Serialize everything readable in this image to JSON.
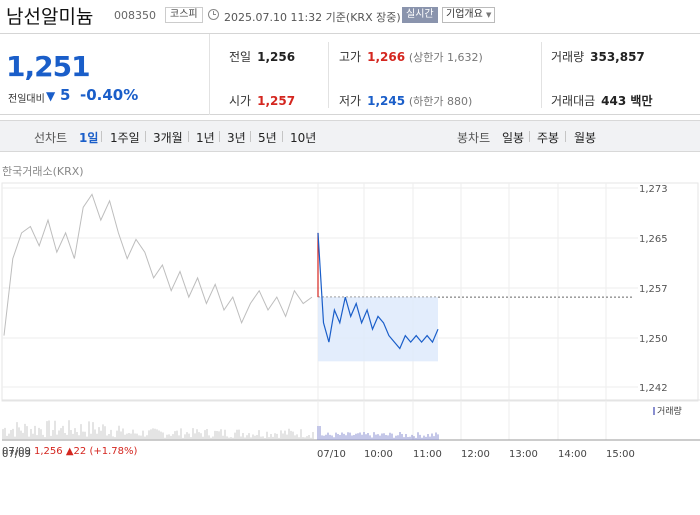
{
  "header": {
    "company_name": "남선알미늄",
    "company_code": "008350",
    "market": "코스피",
    "datetime": "2025.07.10 11:32 기준(KRX 장중)",
    "realtime_label": "실시간",
    "company_info_label": "기업개요"
  },
  "price": {
    "current": "1,251",
    "change_label": "전일대비",
    "change_value": "5",
    "change_rate": "-0.40%"
  },
  "metrics": {
    "prev_close_label": "전일",
    "prev_close": "1,256",
    "open_label": "시가",
    "open": "1,257",
    "high_label": "고가",
    "high": "1,266",
    "upper_limit": "(상한가 1,632)",
    "low_label": "저가",
    "low": "1,245",
    "lower_limit": "(하한가 880)",
    "volume_label": "거래량",
    "volume": "353,857",
    "amount_label": "거래대금",
    "amount": "443 백만"
  },
  "tabs": {
    "line_label": "선차트",
    "line_tabs": [
      "1일",
      "1주일",
      "3개월",
      "1년",
      "3년",
      "5년",
      "10년"
    ],
    "active_tab": "1일",
    "candle_label": "봉차트",
    "candle_tabs": [
      "일봉",
      "주봉",
      "월봉"
    ]
  },
  "chart": {
    "source": "한국거래소(KRX)",
    "volume_legend": "거래량",
    "prev_day_summary": {
      "date": "07/09",
      "close": "1,256",
      "change": "22",
      "rate": "(+1.78%)"
    },
    "colors": {
      "up": "#d4261f",
      "down": "#1a5ec9",
      "prev_line": "#bdbdbd",
      "fill": "#dce8fb"
    }
  },
  "chart_data": {
    "type": "line",
    "y_ticks": [
      "1,273",
      "1,265",
      "1,257",
      "1,250",
      "1,242"
    ],
    "ylim": [
      1242,
      1273
    ],
    "x_ticks": [
      "07/09",
      "07/10",
      "10:00",
      "11:00",
      "12:00",
      "13:00",
      "14:00",
      "15:00"
    ],
    "reference_line": 1256,
    "series": [
      {
        "values": [
          1250,
          1262,
          1266,
          1267,
          1264,
          1268,
          1263,
          1266,
          1262,
          1270,
          1272,
          1268,
          1271,
          1266,
          1262,
          1265,
          1263,
          1259,
          1261,
          1257,
          1260,
          1256,
          1259,
          1255,
          1258,
          1254,
          1256,
          1252,
          1255,
          1257,
          1254,
          1256,
          1253,
          1257,
          1255,
          1256
        ]
      },
      {
        "values": [
          1266,
          1252,
          1249,
          1254,
          1252,
          1256,
          1253,
          1255,
          1252,
          1254,
          1251,
          1253,
          1252,
          1250,
          1249,
          1248,
          1250,
          1249,
          1250,
          1249,
          1250,
          1249,
          1251
        ]
      }
    ]
  }
}
